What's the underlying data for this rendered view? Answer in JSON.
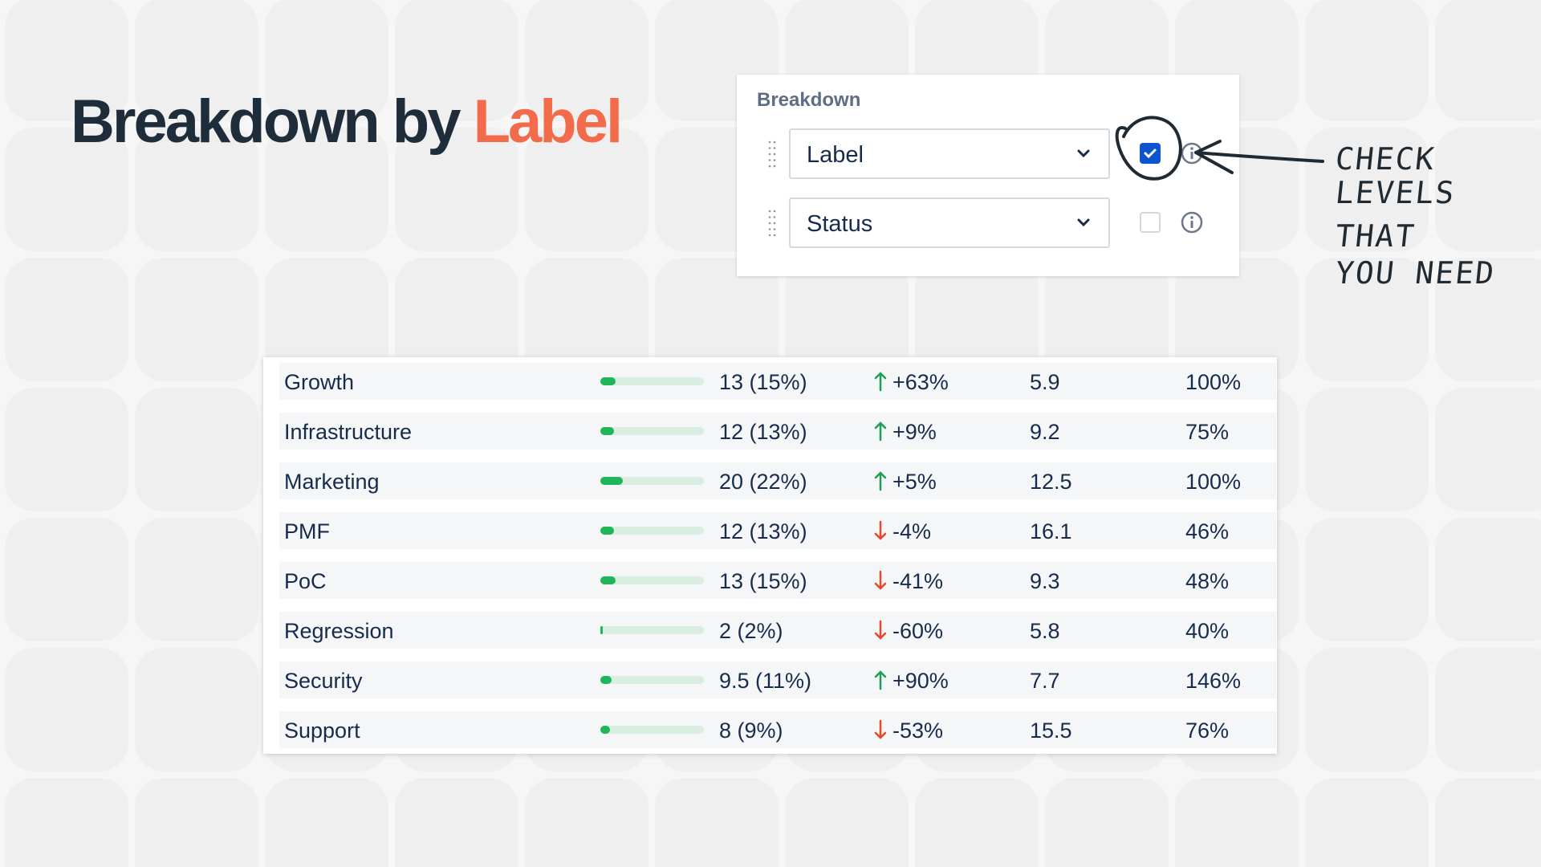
{
  "header": {
    "title": "Breakdown by",
    "title_accent": "Label"
  },
  "panel": {
    "label": "Breakdown",
    "levels": [
      {
        "name": "Label",
        "checked": true
      },
      {
        "name": "Status",
        "checked": false
      }
    ]
  },
  "annotation": {
    "lines": [
      "CHECK",
      "LEVELS",
      "THAT",
      "YOU NEED"
    ]
  },
  "table": {
    "rows": [
      {
        "label": "Growth",
        "share": 15,
        "count": "13 (15%)",
        "direction": "up",
        "trend": "+63%",
        "average": "5.9",
        "rate": "100%"
      },
      {
        "label": "Infrastructure",
        "share": 13,
        "count": "12 (13%)",
        "direction": "up",
        "trend": "+9%",
        "average": "9.2",
        "rate": "75%"
      },
      {
        "label": "Marketing",
        "share": 22,
        "count": "20 (22%)",
        "direction": "up",
        "trend": "+5%",
        "average": "12.5",
        "rate": "100%"
      },
      {
        "label": "PMF",
        "share": 13,
        "count": "12 (13%)",
        "direction": "down",
        "trend": "-4%",
        "average": "16.1",
        "rate": "46%"
      },
      {
        "label": "PoC",
        "share": 15,
        "count": "13 (15%)",
        "direction": "down",
        "trend": "-41%",
        "average": "9.3",
        "rate": "48%"
      },
      {
        "label": "Regression",
        "share": 2,
        "count": "2 (2%)",
        "direction": "down",
        "trend": "-60%",
        "average": "5.8",
        "rate": "40%"
      },
      {
        "label": "Security",
        "share": 11,
        "count": "9.5 (11%)",
        "direction": "up",
        "trend": "+90%",
        "average": "7.7",
        "rate": "146%"
      },
      {
        "label": "Support",
        "share": 9,
        "count": "8 (9%)",
        "direction": "down",
        "trend": "-53%",
        "average": "15.5",
        "rate": "76%"
      }
    ]
  }
}
